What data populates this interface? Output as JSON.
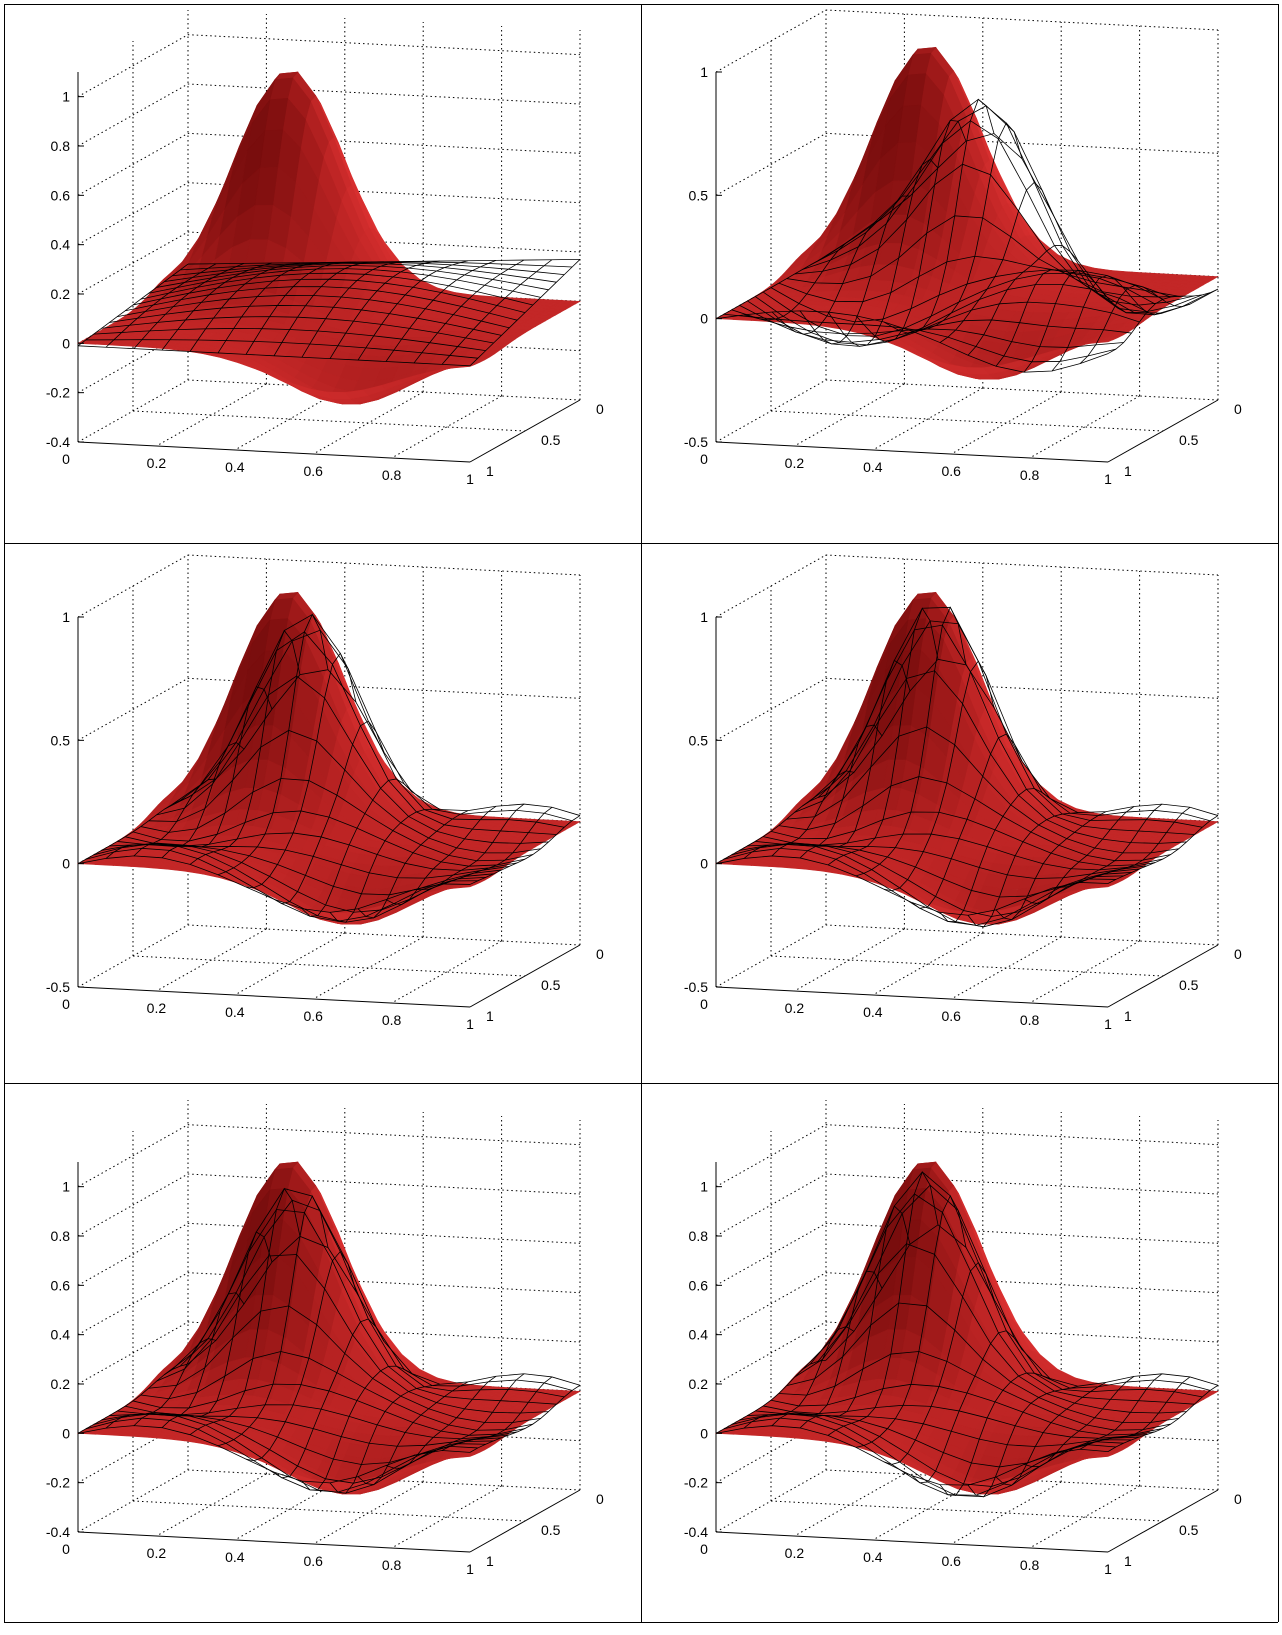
{
  "figure": {
    "layout": "3x2 grid of 3-D surface plots",
    "surface_color": "#a01818",
    "surface_light_color": "#f08080",
    "mesh_color": "#000000",
    "grid_style": "dotted"
  },
  "chart_data": [
    {
      "type": "surface3d",
      "x_ticks": [
        "0",
        "0.2",
        "0.4",
        "0.6",
        "0.8",
        "1"
      ],
      "y_ticks": [
        "0",
        "0.5",
        "1"
      ],
      "z_ticks": [
        "-0.4",
        "-0.2",
        "0",
        "0.2",
        "0.4",
        "0.6",
        "0.8",
        "1"
      ],
      "zlim": [
        -0.4,
        1.1
      ],
      "surface": {
        "name": "",
        "peak": 0.92,
        "trough": -0.23
      },
      "mesh": {
        "name": "",
        "amp": 0.12,
        "peak_shift": 0.0,
        "mode": "flat"
      }
    },
    {
      "type": "surface3d",
      "x_ticks": [
        "0",
        "0.2",
        "0.4",
        "0.6",
        "0.8",
        "1"
      ],
      "y_ticks": [
        "0",
        "0.5",
        "1"
      ],
      "z_ticks": [
        "-0.5",
        "0",
        "0.5",
        "1"
      ],
      "zlim": [
        -0.5,
        1.0
      ],
      "surface": {
        "name": "",
        "peak": 0.92,
        "trough": -0.23
      },
      "mesh": {
        "name": "",
        "amp": 0.7,
        "peak_shift": -0.15,
        "mode": "wide"
      }
    },
    {
      "type": "surface3d",
      "x_ticks": [
        "0",
        "0.2",
        "0.4",
        "0.6",
        "0.8",
        "1"
      ],
      "y_ticks": [
        "0",
        "0.5",
        "1"
      ],
      "z_ticks": [
        "-0.5",
        "0",
        "0.5",
        "1"
      ],
      "zlim": [
        -0.5,
        1.0
      ],
      "surface": {
        "name": "",
        "peak": 0.92,
        "trough": -0.23
      },
      "mesh": {
        "name": "",
        "amp": 0.9,
        "peak_shift": -0.05,
        "mode": "close"
      }
    },
    {
      "type": "surface3d",
      "x_ticks": [
        "0",
        "0.2",
        "0.4",
        "0.6",
        "0.8",
        "1"
      ],
      "y_ticks": [
        "0",
        "0.5",
        "1"
      ],
      "z_ticks": [
        "-0.5",
        "0",
        "0.5",
        "1"
      ],
      "zlim": [
        -0.5,
        1.0
      ],
      "surface": {
        "name": "",
        "peak": 0.92,
        "trough": -0.23
      },
      "mesh": {
        "name": "",
        "amp": 0.95,
        "peak_shift": -0.03,
        "mode": "close"
      }
    },
    {
      "type": "surface3d",
      "x_ticks": [
        "0",
        "0.2",
        "0.4",
        "0.6",
        "0.8",
        "1"
      ],
      "y_ticks": [
        "0",
        "0.5",
        "1"
      ],
      "z_ticks": [
        "-0.4",
        "-0.2",
        "0",
        "0.2",
        "0.4",
        "0.6",
        "0.8",
        "1"
      ],
      "zlim": [
        -0.4,
        1.1
      ],
      "surface": {
        "name": "",
        "peak": 0.92,
        "trough": -0.23
      },
      "mesh": {
        "name": "",
        "amp": 0.88,
        "peak_shift": -0.02,
        "mode": "close"
      }
    },
    {
      "type": "surface3d",
      "x_ticks": [
        "0",
        "0.2",
        "0.4",
        "0.6",
        "0.8",
        "1"
      ],
      "y_ticks": [
        "0",
        "0.5",
        "1"
      ],
      "z_ticks": [
        "-0.4",
        "-0.2",
        "0",
        "0.2",
        "0.4",
        "0.6",
        "0.8",
        "1"
      ],
      "zlim": [
        -0.4,
        1.1
      ],
      "surface": {
        "name": "",
        "peak": 0.92,
        "trough": -0.23
      },
      "mesh": {
        "name": "",
        "amp": 0.93,
        "peak_shift": 0.0,
        "mode": "close"
      }
    }
  ]
}
